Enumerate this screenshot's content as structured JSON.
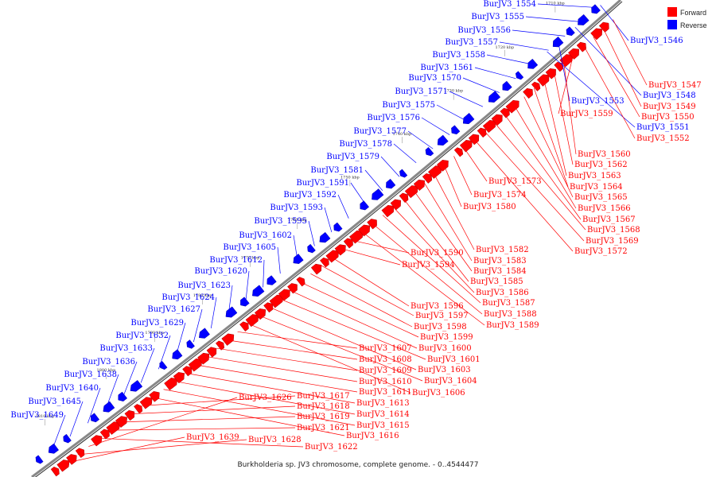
{
  "caption": "Burkholderia sp. JV3 chromosome, complete genome. - 0..4544477",
  "colors": {
    "forward": "#ff0000",
    "reverse": "#0000ff",
    "axis": "#888888"
  },
  "legend": [
    {
      "label": "Forward",
      "color": "#ff0000"
    },
    {
      "label": "Reverse",
      "color": "#0000ff"
    }
  ],
  "ticks": [
    "1710 kbp",
    "1720 kbp",
    "1730 kbp",
    "1740 kbp",
    "1750 kbp",
    "1760 kbp",
    "1770 kbp",
    "1780 kbp",
    "1790 kbp",
    "1800 kbp",
    "1810 kbp"
  ],
  "reverse_labels": [
    "BurJV3_1554",
    "BurJV3_1555",
    "BurJV3_1556",
    "BurJV3_1557",
    "BurJV3_1558",
    "BurJV3_1561",
    "BurJV3_1570",
    "BurJV3_1571",
    "BurJV3_1575",
    "BurJV3_1576",
    "BurJV3_1577",
    "BurJV3_1578",
    "BurJV3_1579",
    "BurJV3_1581",
    "BurJV3_1591",
    "BurJV3_1592",
    "BurJV3_1593",
    "BurJV3_1595",
    "BurJV3_1602",
    "BurJV3_1605",
    "BurJV3_1612",
    "BurJV3_1620",
    "BurJV3_1623",
    "BurJV3_1624",
    "BurJV3_1627",
    "BurJV3_1629",
    "BurJV3_1632",
    "BurJV3_1633",
    "BurJV3_1636",
    "BurJV3_1638",
    "BurJV3_1640",
    "BurJV3_1645",
    "BurJV3_1649"
  ],
  "reverse_right_labels": [
    "BurJV3_1546",
    "BurJV3_1553",
    "BurJV3_1548",
    "BurJV3_1551"
  ],
  "forward_labels": [
    "BurJV3_1547",
    "BurJV3_1549",
    "BurJV3_1550",
    "BurJV3_1552",
    "BurJV3_1559",
    "BurJV3_1560",
    "BurJV3_1562",
    "BurJV3_1563",
    "BurJV3_1564",
    "BurJV3_1565",
    "BurJV3_1566",
    "BurJV3_1567",
    "BurJV3_1568",
    "BurJV3_1569",
    "BurJV3_1572",
    "BurJV3_1573",
    "BurJV3_1574",
    "BurJV3_1580",
    "BurJV3_1582",
    "BurJV3_1583",
    "BurJV3_1584",
    "BurJV3_1585",
    "BurJV3_1586",
    "BurJV3_1587",
    "BurJV3_1588",
    "BurJV3_1589",
    "BurJV3_1590",
    "BurJV3_1594",
    "BurJV3_1596",
    "BurJV3_1597",
    "BurJV3_1598",
    "BurJV3_1599",
    "BurJV3_1600",
    "BurJV3_1601",
    "BurJV3_1603",
    "BurJV3_1604",
    "BurJV3_1606",
    "BurJV3_1607",
    "BurJV3_1608",
    "BurJV3_1609",
    "BurJV3_1610",
    "BurJV3_1611",
    "BurJV3_1613",
    "BurJV3_1614",
    "BurJV3_1615",
    "BurJV3_1616",
    "BurJV3_1617",
    "BurJV3_1618",
    "BurJV3_1619",
    "BurJV3_1621",
    "BurJV3_1622",
    "BurJV3_1626",
    "BurJV3_1628",
    "BurJV3_1639"
  ]
}
